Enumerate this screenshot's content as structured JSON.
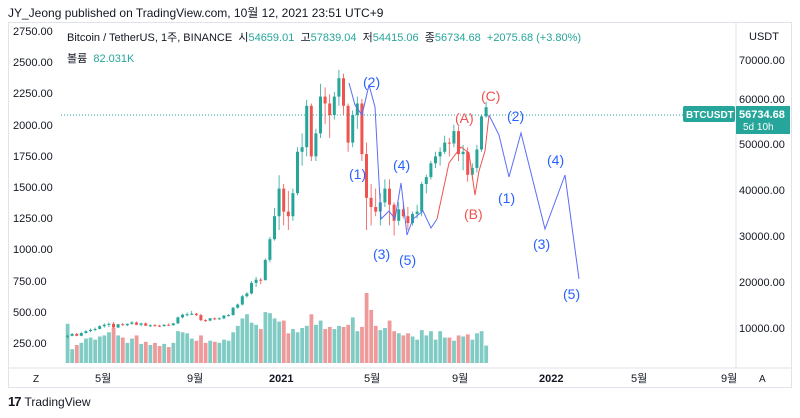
{
  "header": {
    "published": "JY_Jeong published on TradingView.com, 10월 12, 2021 23:51 UTC+9"
  },
  "legend": {
    "title": "Bitcoin / TetherUS, 1주, BINANCE",
    "open_label": "시",
    "open": "54659.01",
    "high_label": "고",
    "high": "57839.04",
    "low_label": "저",
    "low": "54415.06",
    "close_label": "종",
    "close": "56734.68",
    "change": "+2075.68 (+3.80%)",
    "volume_label": "볼륨",
    "volume": "82.031K"
  },
  "currency": "USDT",
  "price_tag": {
    "symbol": "BTCUSDT",
    "price": "56734.68",
    "countdown": "5d 10h"
  },
  "left_axis_labels": [
    "2750.00",
    "2500.00",
    "2250.00",
    "2000.00",
    "1750.00",
    "1500.00",
    "1250.00",
    "1000.00",
    "750.00",
    "500.00",
    "250.00"
  ],
  "right_axis_labels": [
    "70000.00",
    "60000.00",
    "50000.00",
    "40000.00",
    "30000.00",
    "20000.00",
    "10000.00"
  ],
  "time_axis_labels": [
    "5월",
    "9월",
    "2021",
    "5월",
    "9월",
    "2022",
    "5월",
    "9월"
  ],
  "axis_buttons": {
    "zoom": "Z",
    "auto": "A"
  },
  "wave_labels": {
    "top_2": "(2)",
    "wave_1": "(1)",
    "wave_4": "(4)",
    "wave_3": "(3)",
    "wave_5": "(5)",
    "corr_a": "(A)",
    "corr_b": "(B)",
    "corr_c": "(C)",
    "proj_2": "(2)",
    "proj_1": "(1)",
    "proj_3": "(3)",
    "proj_4": "(4)",
    "proj_5": "(5)"
  },
  "colors": {
    "up": "#26a69a",
    "down": "#ef5350",
    "wave_blue": "#2962ff",
    "wave_red": "#ef5350",
    "vol_up": "#80cbc4",
    "vol_down": "#ef9a9a"
  },
  "chart_data": {
    "type": "candlestick",
    "instrument": "Bitcoin / TetherUS, 1주, BINANCE",
    "y_range_right": [
      0,
      75000
    ],
    "candles": [
      [
        6800,
        7200,
        6400,
        7000
      ],
      [
        7000,
        7600,
        6900,
        7400
      ],
      [
        7400,
        7600,
        6900,
        7000
      ],
      [
        7000,
        7800,
        6900,
        7600
      ],
      [
        7600,
        8200,
        7500,
        8000
      ],
      [
        8000,
        8600,
        7800,
        8300
      ],
      [
        8300,
        8800,
        8000,
        8500
      ],
      [
        8500,
        9300,
        8400,
        9100
      ],
      [
        9100,
        9700,
        8800,
        9400
      ],
      [
        9400,
        9900,
        8900,
        9600
      ],
      [
        9600,
        10000,
        8600,
        8800
      ],
      [
        8800,
        9600,
        8700,
        9500
      ],
      [
        9500,
        9800,
        9200,
        9300
      ],
      [
        9300,
        9700,
        9100,
        9600
      ],
      [
        9600,
        10200,
        9400,
        9900
      ],
      [
        9900,
        10100,
        9300,
        9400
      ],
      [
        9400,
        9800,
        9100,
        9700
      ],
      [
        9700,
        9900,
        9100,
        9200
      ],
      [
        9200,
        9500,
        8900,
        9300
      ],
      [
        9300,
        9600,
        9000,
        9200
      ],
      [
        9200,
        9400,
        8900,
        9100
      ],
      [
        9100,
        9500,
        9000,
        9400
      ],
      [
        9400,
        9700,
        9200,
        9300
      ],
      [
        9300,
        9800,
        9200,
        9700
      ],
      [
        9700,
        11200,
        9600,
        11000
      ],
      [
        11000,
        11800,
        10800,
        11600
      ],
      [
        11600,
        12100,
        11200,
        11700
      ],
      [
        11700,
        12400,
        11500,
        11800
      ],
      [
        11800,
        12000,
        11300,
        11500
      ],
      [
        11500,
        11800,
        10200,
        10400
      ],
      [
        10400,
        10600,
        10000,
        10300
      ],
      [
        10300,
        10900,
        10200,
        10800
      ],
      [
        10800,
        11000,
        10400,
        10700
      ],
      [
        10700,
        11000,
        10500,
        10800
      ],
      [
        10800,
        11500,
        10600,
        11400
      ],
      [
        11400,
        11700,
        11200,
        11500
      ],
      [
        11500,
        13300,
        11400,
        13100
      ],
      [
        13100,
        14000,
        12900,
        13800
      ],
      [
        13800,
        15900,
        13600,
        15600
      ],
      [
        15600,
        16500,
        15300,
        16200
      ],
      [
        16200,
        18900,
        16000,
        18500
      ],
      [
        18500,
        19800,
        17600,
        19200
      ],
      [
        19200,
        19600,
        18200,
        19100
      ],
      [
        19100,
        23800,
        19000,
        23500
      ],
      [
        23500,
        28500,
        23000,
        28000
      ],
      [
        28000,
        34800,
        27700,
        33000
      ],
      [
        33000,
        41900,
        30000,
        39000
      ],
      [
        39000,
        40000,
        31000,
        34000
      ],
      [
        34000,
        38500,
        30000,
        33000
      ],
      [
        33000,
        39000,
        32000,
        38000
      ],
      [
        38000,
        48000,
        37500,
        47000
      ],
      [
        47000,
        51000,
        44000,
        48000
      ],
      [
        48000,
        58300,
        46000,
        57000
      ],
      [
        57000,
        57500,
        45000,
        46000
      ],
      [
        46000,
        52000,
        45000,
        51000
      ],
      [
        51000,
        61800,
        50000,
        59000
      ],
      [
        59000,
        61000,
        53000,
        57500
      ],
      [
        57500,
        59500,
        50000,
        55000
      ],
      [
        55000,
        60000,
        54000,
        59000
      ],
      [
        59000,
        64800,
        57000,
        63000
      ],
      [
        63000,
        64000,
        55000,
        57000
      ],
      [
        57000,
        57500,
        47000,
        49000
      ],
      [
        49000,
        56000,
        48000,
        55000
      ],
      [
        55000,
        59000,
        52000,
        57500
      ],
      [
        57500,
        58500,
        45000,
        46500
      ],
      [
        46500,
        49000,
        30000,
        37000
      ],
      [
        37000,
        40000,
        31000,
        35000
      ],
      [
        35000,
        39000,
        33000,
        34000
      ],
      [
        34000,
        38000,
        31000,
        36000
      ],
      [
        36000,
        41000,
        35000,
        39000
      ],
      [
        39000,
        41000,
        31000,
        35500
      ],
      [
        35500,
        36000,
        28800,
        32000
      ],
      [
        32000,
        36000,
        31000,
        34500
      ],
      [
        34500,
        36000,
        32500,
        33000
      ],
      [
        33000,
        35000,
        30000,
        31500
      ],
      [
        31500,
        34000,
        31000,
        33500
      ],
      [
        33500,
        35500,
        32500,
        34000
      ],
      [
        34000,
        40500,
        33000,
        40000
      ],
      [
        40000,
        42000,
        38000,
        41500
      ],
      [
        41500,
        45000,
        41000,
        44500
      ],
      [
        44500,
        47000,
        43500,
        46000
      ],
      [
        46000,
        48000,
        44000,
        47000
      ],
      [
        47000,
        50500,
        46500,
        49000
      ],
      [
        49000,
        50000,
        46000,
        48800
      ],
      [
        48800,
        52900,
        48000,
        51500
      ],
      [
        51500,
        52500,
        45000,
        46500
      ],
      [
        46500,
        48500,
        43000,
        47000
      ],
      [
        47000,
        48000,
        40500,
        42000
      ],
      [
        42000,
        44500,
        41000,
        43500
      ],
      [
        43500,
        48500,
        42500,
        47500
      ],
      [
        47500,
        55000,
        47000,
        54700
      ],
      [
        54700,
        57900,
        54400,
        56700
      ]
    ],
    "volumes_k": [
      185,
      65,
      85,
      95,
      115,
      120,
      110,
      125,
      130,
      145,
      165,
      130,
      120,
      95,
      115,
      130,
      90,
      100,
      85,
      95,
      80,
      90,
      75,
      95,
      150,
      145,
      140,
      115,
      105,
      130,
      95,
      105,
      100,
      95,
      110,
      105,
      145,
      175,
      210,
      230,
      190,
      180,
      160,
      240,
      235,
      210,
      195,
      200,
      140,
      160,
      145,
      165,
      175,
      230,
      180,
      200,
      160,
      170,
      160,
      175,
      170,
      180,
      215,
      150,
      170,
      330,
      250,
      175,
      155,
      165,
      200,
      150,
      140,
      130,
      140,
      125,
      110,
      155,
      130,
      150,
      110,
      150,
      120,
      120,
      105,
      130,
      125,
      135,
      110,
      140,
      150,
      82
    ]
  }
}
